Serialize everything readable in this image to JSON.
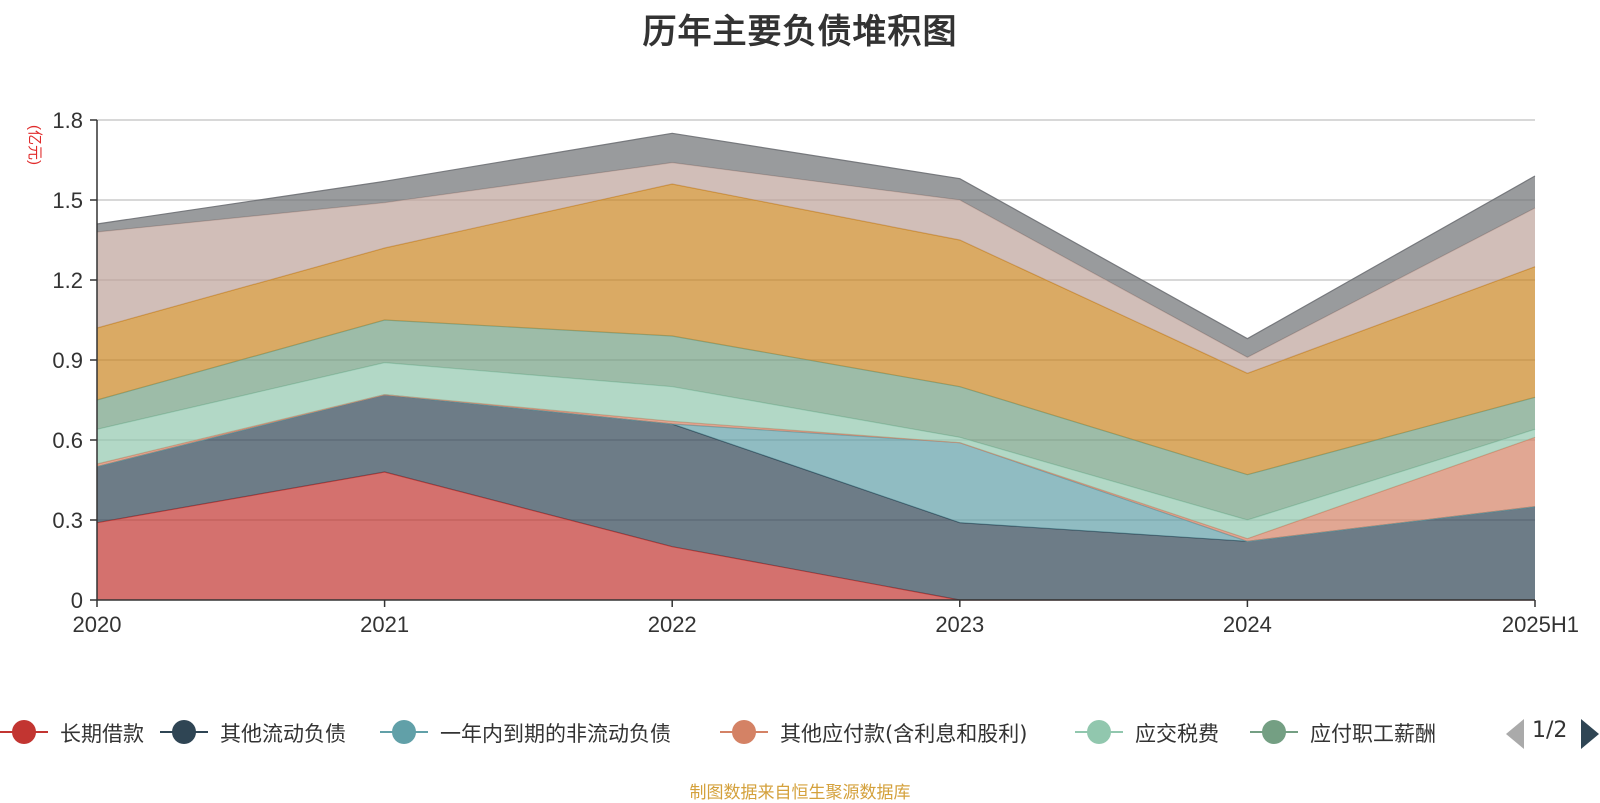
{
  "chart_data": {
    "type": "area",
    "stacked": true,
    "title": "历年主要负债堆积图",
    "ylabel": "(亿元)",
    "x": [
      "2020",
      "2021",
      "2022",
      "2023",
      "2024",
      "2025H1"
    ],
    "ylim": [
      0,
      1.8
    ],
    "yticks": [
      "0",
      "0.3",
      "0.6",
      "0.9",
      "1.2",
      "1.5",
      "1.8"
    ],
    "grid": true,
    "series": [
      {
        "name": "长期借款",
        "color": "#c23531",
        "values": [
          0.29,
          0.48,
          0.2,
          0.0,
          0.0,
          0.0
        ]
      },
      {
        "name": "其他流动负债",
        "color": "#2f4554",
        "values": [
          0.21,
          0.29,
          0.46,
          0.29,
          0.22,
          0.35
        ]
      },
      {
        "name": "一年内到期的非流动负债",
        "color": "#61a0a8",
        "values": [
          0.0,
          0.0,
          0.0,
          0.3,
          0.0,
          0.0
        ]
      },
      {
        "name": "其他应付款(含利息和股利)",
        "color": "#d48265",
        "values": [
          0.01,
          0.0,
          0.01,
          0.0,
          0.01,
          0.26
        ]
      },
      {
        "name": "应交税费",
        "color": "#91c7ae",
        "values": [
          0.13,
          0.12,
          0.13,
          0.02,
          0.07,
          0.03
        ]
      },
      {
        "name": "应付职工薪酬",
        "color": "#749f83",
        "values": [
          0.11,
          0.16,
          0.19,
          0.19,
          0.17,
          0.12
        ]
      },
      {
        "name": "",
        "color": "#ca8622",
        "values": [
          0.27,
          0.27,
          0.57,
          0.55,
          0.38,
          0.49
        ]
      },
      {
        "name": "",
        "color": "#bda29a",
        "values": [
          0.36,
          0.17,
          0.08,
          0.15,
          0.06,
          0.22
        ]
      },
      {
        "name": "",
        "color": "#6e7074",
        "values": [
          0.03,
          0.08,
          0.11,
          0.08,
          0.07,
          0.12
        ]
      }
    ],
    "legend": {
      "position": "bottom",
      "visible_labels": [
        "长期借款",
        "其他流动负债",
        "一年内到期的非流动负债",
        "其他应付款(含利息和股利)",
        "应交税费",
        "应付职工薪酬"
      ],
      "page": "1/2"
    }
  },
  "footer": {
    "source": "制图数据来自恒生聚源数据库"
  }
}
